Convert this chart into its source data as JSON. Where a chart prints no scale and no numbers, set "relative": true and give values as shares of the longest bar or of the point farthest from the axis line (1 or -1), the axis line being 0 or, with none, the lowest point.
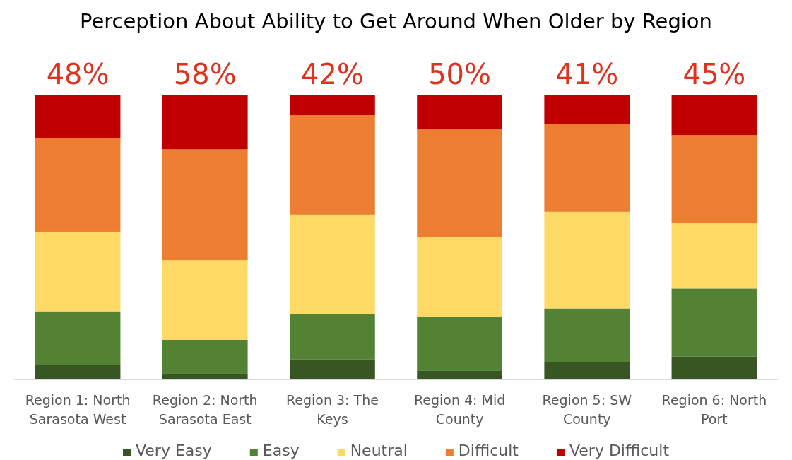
{
  "chart_data": {
    "type": "bar",
    "title": "Perception About Ability to Get Around When Older by Region",
    "categories": [
      "Region 1: North Sarasota West",
      "Region 2: North Sarasota East",
      "Region 3: The Keys",
      "Region 4: Mid County",
      "Region 5: SW County",
      "Region 6: North Port"
    ],
    "stacked": true,
    "relative": true,
    "legend": "bottom",
    "series": [
      {
        "name": "Very Easy",
        "color": "#375623",
        "values": [
          0.05,
          0.02,
          0.07,
          0.03,
          0.06,
          0.08
        ]
      },
      {
        "name": "Easy",
        "color": "#548235",
        "values": [
          0.19,
          0.12,
          0.16,
          0.19,
          0.19,
          0.24
        ]
      },
      {
        "name": "Neutral",
        "color": "#ffd966",
        "values": [
          0.28,
          0.28,
          0.35,
          0.28,
          0.34,
          0.23
        ]
      },
      {
        "name": "Difficult",
        "color": "#ed7d31",
        "values": [
          0.33,
          0.39,
          0.35,
          0.38,
          0.31,
          0.31
        ]
      },
      {
        "name": "Very Difficult",
        "color": "#c00000",
        "values": [
          0.15,
          0.19,
          0.07,
          0.12,
          0.1,
          0.14
        ]
      }
    ],
    "annotations": [
      {
        "text": "48%",
        "x": "Region 1: North Sarasota West",
        "y": 1
      },
      {
        "text": "58%",
        "x": "Region 2: North Sarasota East",
        "y": 1
      },
      {
        "text": "42%",
        "x": "Region 3: The Keys",
        "y": 1
      },
      {
        "text": "50%",
        "x": "Region 4: Mid County",
        "y": 1
      },
      {
        "text": "41%",
        "x": "Region 5: SW County",
        "y": 1
      },
      {
        "text": "45%",
        "x": "Region 6: North Port",
        "y": 1
      }
    ]
  }
}
